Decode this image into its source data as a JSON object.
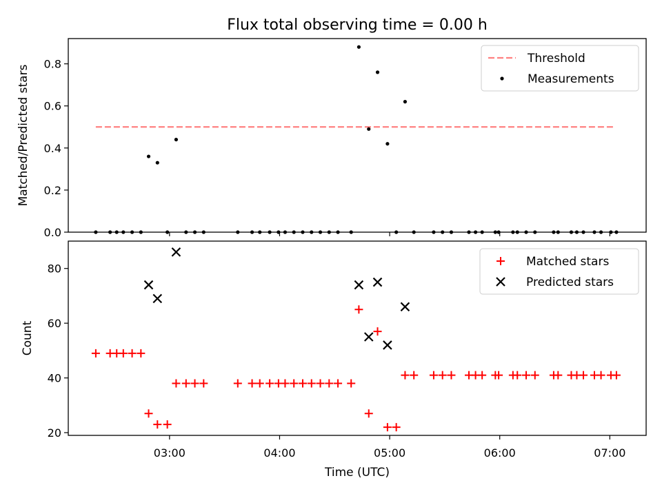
{
  "chart_data": [
    {
      "type": "scatter",
      "title": "Flux total observing time = 0.00 h",
      "xlabel": "",
      "ylabel": "Matched/Predicted stars",
      "xlim": [
        2.08,
        7.33
      ],
      "ylim": [
        0,
        0.92
      ],
      "yticks": [
        0.0,
        0.2,
        0.4,
        0.6,
        0.8
      ],
      "ytick_labels": [
        "0.0",
        "0.2",
        "0.4",
        "0.6",
        "0.8"
      ],
      "legend_position": "top-right",
      "series": [
        {
          "name": "Threshold",
          "kind": "dashed-line",
          "color": "#ff8080",
          "x": [
            2.33,
            7.05
          ],
          "y": [
            0.5,
            0.5
          ]
        },
        {
          "name": "Measurements",
          "kind": "dots",
          "color": "#000000",
          "x": [
            2.33,
            2.46,
            2.52,
            2.58,
            2.66,
            2.74,
            2.81,
            2.89,
            2.98,
            3.06,
            3.15,
            3.23,
            3.31,
            3.62,
            3.75,
            3.82,
            3.91,
            3.99,
            4.05,
            4.13,
            4.21,
            4.29,
            4.37,
            4.45,
            4.53,
            4.65,
            4.72,
            4.81,
            4.89,
            4.98,
            5.06,
            5.14,
            5.22,
            5.4,
            5.48,
            5.56,
            5.72,
            5.78,
            5.84,
            5.96,
            5.99,
            6.12,
            6.16,
            6.24,
            6.32,
            6.49,
            6.53,
            6.65,
            6.7,
            6.76,
            6.86,
            6.92,
            7.01,
            7.06
          ],
          "y": [
            0,
            0,
            0,
            0,
            0,
            0,
            0.36,
            0.33,
            0,
            0.44,
            0,
            0,
            0,
            0,
            0,
            0,
            0,
            0,
            0,
            0,
            0,
            0,
            0,
            0,
            0,
            0,
            0.88,
            0.49,
            0.76,
            0.42,
            0,
            0.62,
            0,
            0,
            0,
            0,
            0,
            0,
            0,
            0,
            0,
            0,
            0,
            0,
            0,
            0,
            0,
            0,
            0,
            0,
            0,
            0,
            0,
            0
          ]
        }
      ]
    },
    {
      "type": "scatter",
      "title": "",
      "xlabel": "Time (UTC)",
      "ylabel": "Count",
      "xlim": [
        2.08,
        7.33
      ],
      "ylim": [
        19,
        90
      ],
      "yticks": [
        20,
        40,
        60,
        80
      ],
      "ytick_labels": [
        "20",
        "40",
        "60",
        "80"
      ],
      "xticks": [
        3,
        4,
        5,
        6,
        7
      ],
      "xtick_labels": [
        "03:00",
        "04:00",
        "05:00",
        "06:00",
        "07:00"
      ],
      "legend_position": "top-right",
      "series": [
        {
          "name": "Matched stars",
          "kind": "plus",
          "color": "#ff0000",
          "x": [
            2.33,
            2.46,
            2.52,
            2.58,
            2.66,
            2.74,
            2.81,
            2.89,
            2.98,
            3.06,
            3.15,
            3.23,
            3.31,
            3.62,
            3.75,
            3.82,
            3.91,
            3.99,
            4.05,
            4.13,
            4.21,
            4.29,
            4.37,
            4.45,
            4.53,
            4.65,
            4.72,
            4.81,
            4.89,
            4.98,
            5.06,
            5.14,
            5.22,
            5.4,
            5.48,
            5.56,
            5.72,
            5.78,
            5.84,
            5.96,
            5.99,
            6.12,
            6.16,
            6.24,
            6.32,
            6.49,
            6.53,
            6.65,
            6.7,
            6.76,
            6.86,
            6.92,
            7.01,
            7.06
          ],
          "y": [
            49,
            49,
            49,
            49,
            49,
            49,
            27,
            23,
            23,
            38,
            38,
            38,
            38,
            38,
            38,
            38,
            38,
            38,
            38,
            38,
            38,
            38,
            38,
            38,
            38,
            38,
            65,
            27,
            57,
            22,
            22,
            41,
            41,
            41,
            41,
            41,
            41,
            41,
            41,
            41,
            41,
            41,
            41,
            41,
            41,
            41,
            41,
            41,
            41,
            41,
            41,
            41,
            41,
            41
          ]
        },
        {
          "name": "Predicted stars",
          "kind": "cross",
          "color": "#000000",
          "x": [
            2.81,
            2.89,
            3.06,
            4.72,
            4.81,
            4.89,
            4.98,
            5.14
          ],
          "y": [
            74,
            69,
            86,
            74,
            55,
            75,
            52,
            66
          ]
        }
      ]
    }
  ]
}
